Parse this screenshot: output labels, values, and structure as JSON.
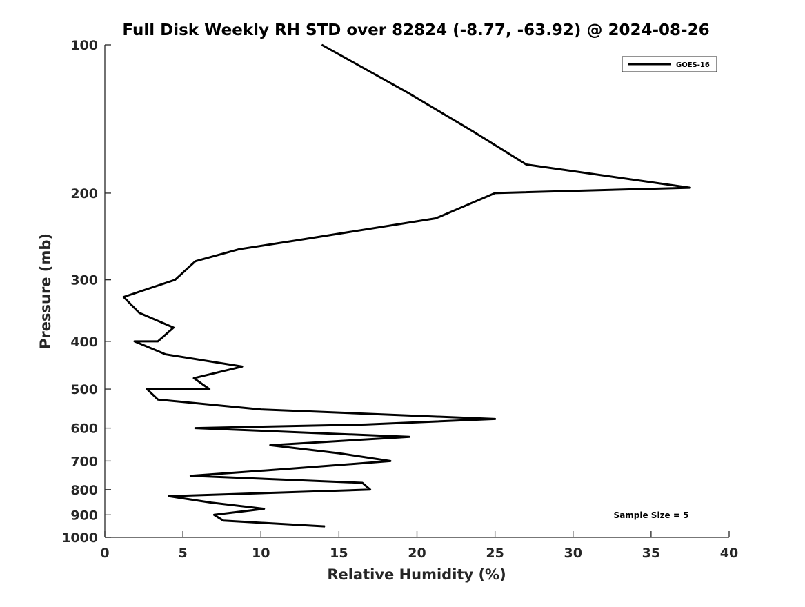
{
  "chart_data": {
    "type": "line",
    "title": "Full Disk Weekly RH STD over 82824 (-8.77, -63.92) @ 2024-08-26",
    "xlabel": "Relative Humidity (%)",
    "ylabel": "Pressure (mb)",
    "xlim": [
      0,
      40
    ],
    "ylim": [
      1000,
      100
    ],
    "yscale": "log",
    "x_ticks": [
      "0",
      "5",
      "10",
      "15",
      "20",
      "25",
      "30",
      "35",
      "40"
    ],
    "y_ticks": [
      "100",
      "200",
      "300",
      "400",
      "500",
      "600",
      "700",
      "800",
      "900",
      "1000"
    ],
    "grid": false,
    "legend_position": "top-right",
    "annotation": "Sample Size = 5",
    "series": [
      {
        "name": "GOES-16",
        "color": "#000000",
        "points": [
          [
            13.9,
            100
          ],
          [
            19.4,
            125
          ],
          [
            23.6,
            150
          ],
          [
            27.0,
            175
          ],
          [
            37.5,
            195
          ],
          [
            25.0,
            200
          ],
          [
            21.2,
            225
          ],
          [
            12.1,
            250
          ],
          [
            8.6,
            260
          ],
          [
            5.8,
            275
          ],
          [
            4.5,
            300
          ],
          [
            1.2,
            325
          ],
          [
            2.2,
            350
          ],
          [
            4.4,
            375
          ],
          [
            3.4,
            400
          ],
          [
            1.9,
            400
          ],
          [
            3.9,
            425
          ],
          [
            8.8,
            450
          ],
          [
            5.7,
            475
          ],
          [
            6.7,
            500
          ],
          [
            2.7,
            500
          ],
          [
            3.4,
            525
          ],
          [
            10.0,
            550
          ],
          [
            25.0,
            575
          ],
          [
            16.7,
            590
          ],
          [
            5.8,
            600
          ],
          [
            19.5,
            625
          ],
          [
            10.6,
            650
          ],
          [
            15.0,
            675
          ],
          [
            18.3,
            700
          ],
          [
            12.0,
            725
          ],
          [
            5.5,
            750
          ],
          [
            16.5,
            775
          ],
          [
            17.0,
            800
          ],
          [
            4.1,
            825
          ],
          [
            6.8,
            850
          ],
          [
            10.2,
            875
          ],
          [
            7.0,
            900
          ],
          [
            7.6,
            925
          ],
          [
            14.1,
            950
          ]
        ]
      }
    ]
  }
}
